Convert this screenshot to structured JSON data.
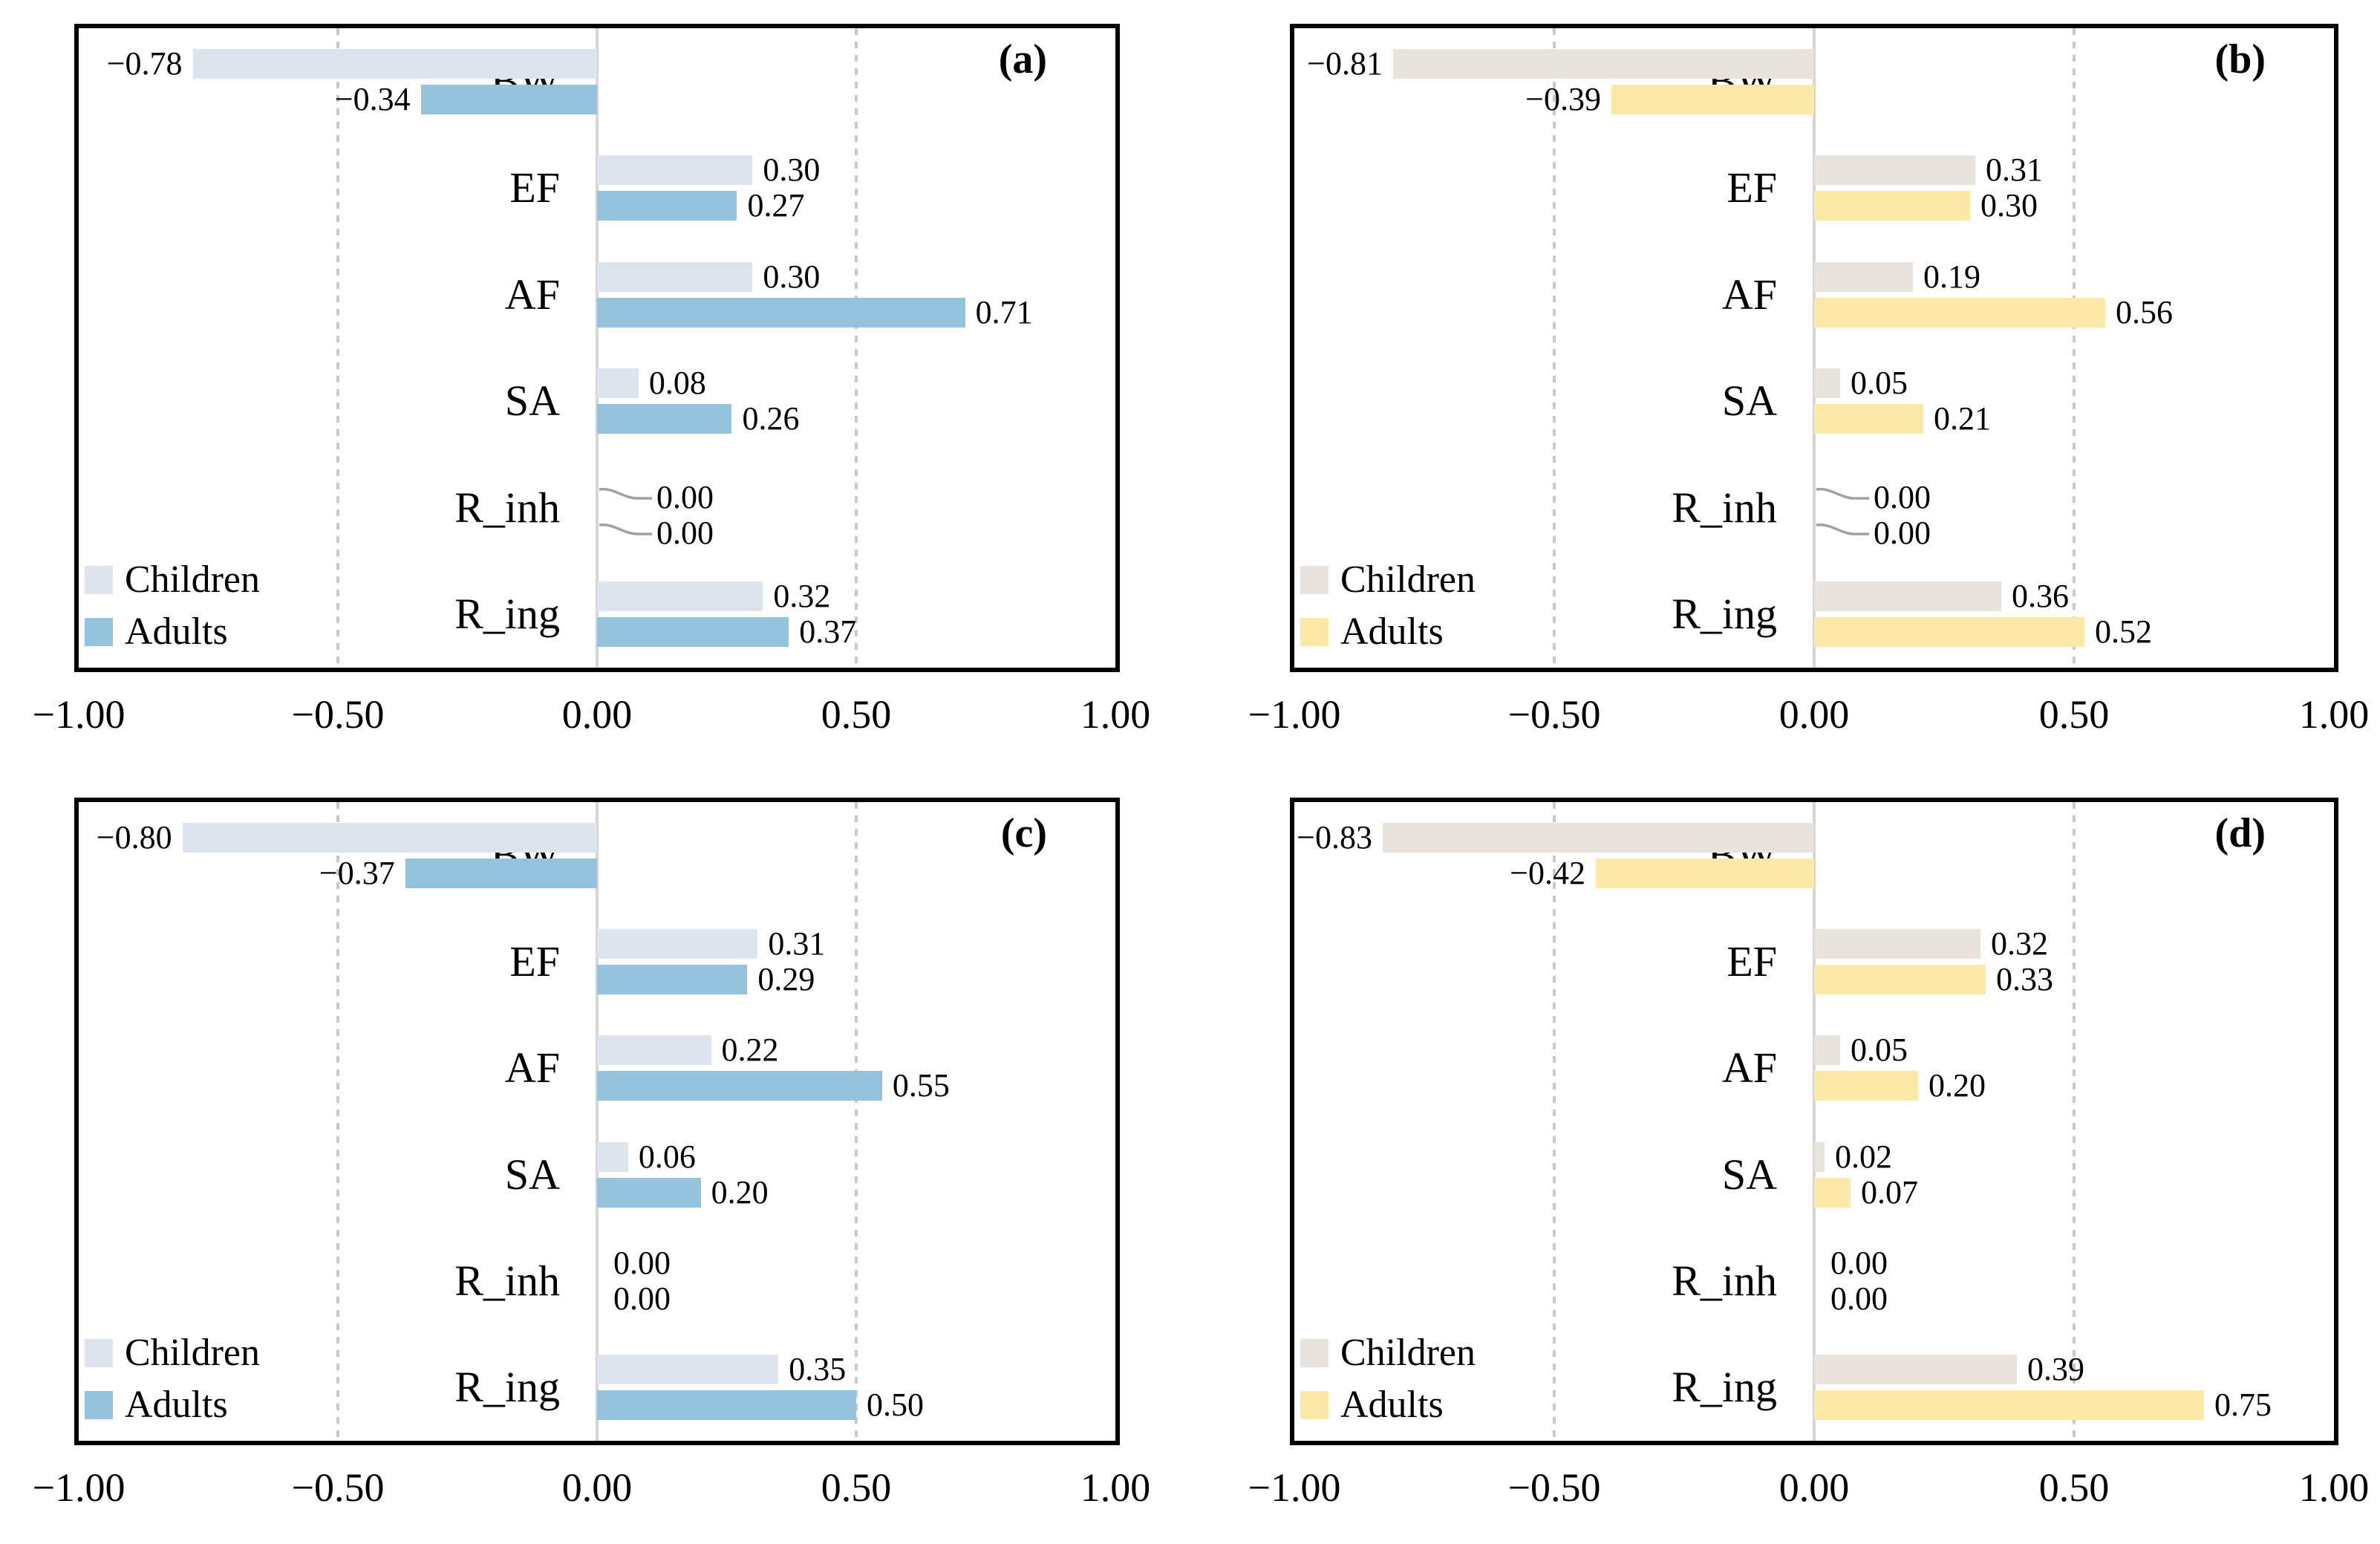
{
  "figure": {
    "background": "#ffffff",
    "description_labels": {
      "x_axis_ticks": [
        "−1.00",
        "−0.50",
        "0.00",
        "0.50",
        "1.00"
      ],
      "legend": {
        "children": "Children",
        "adults": "Adults"
      }
    }
  },
  "colors": {
    "children_blue": "#dde4ee",
    "adults_blue": "#95c2dc",
    "children_tan": "#e8e4dd",
    "adults_yellow": "#fce9a8",
    "gridline": "#c9c9c9",
    "zero_axis": "#d6d6d6",
    "panel_border": "#000000",
    "leader_line": "#a0a0a0",
    "text": "#000000"
  },
  "chart_data": [
    {
      "id": "a",
      "panel_label": "(a)",
      "type": "bar",
      "orientation": "horizontal",
      "categories": [
        "BW",
        "EF",
        "AF",
        "SA",
        "R_inh",
        "R_ing"
      ],
      "series": [
        {
          "name": "Children",
          "color": "#dde4ee",
          "values": [
            -0.78,
            0.3,
            0.3,
            0.08,
            0.0,
            0.32
          ]
        },
        {
          "name": "Adults",
          "color": "#95c2dc",
          "values": [
            -0.34,
            0.27,
            0.71,
            0.26,
            0.0,
            0.37
          ]
        }
      ],
      "xlim": [
        -1,
        1
      ],
      "xtick_labels": [
        "−1.00",
        "−0.50",
        "0.00",
        "0.50",
        "1.00"
      ],
      "gridlines_at": [
        -0.5,
        0.5
      ],
      "legend_position": "bottom-left",
      "value_labels": true,
      "zero_value_leader_lines": true
    },
    {
      "id": "b",
      "panel_label": "(b)",
      "type": "bar",
      "orientation": "horizontal",
      "categories": [
        "BW",
        "EF",
        "AF",
        "SA",
        "R_inh",
        "R_ing"
      ],
      "series": [
        {
          "name": "Children",
          "color": "#e8e4dd",
          "values": [
            -0.81,
            0.31,
            0.19,
            0.05,
            0.0,
            0.36
          ]
        },
        {
          "name": "Adults",
          "color": "#fce9a8",
          "values": [
            -0.39,
            0.3,
            0.56,
            0.21,
            0.0,
            0.52
          ]
        }
      ],
      "xlim": [
        -1,
        1
      ],
      "xtick_labels": [
        "−1.00",
        "−0.50",
        "0.00",
        "0.50",
        "1.00"
      ],
      "gridlines_at": [
        -0.5,
        0.5
      ],
      "legend_position": "bottom-left",
      "value_labels": true,
      "zero_value_leader_lines": true
    },
    {
      "id": "c",
      "panel_label": "(c)",
      "type": "bar",
      "orientation": "horizontal",
      "categories": [
        "BW",
        "EF",
        "AF",
        "SA",
        "R_inh",
        "R_ing"
      ],
      "series": [
        {
          "name": "Children",
          "color": "#dde4ee",
          "values": [
            -0.8,
            0.31,
            0.22,
            0.06,
            0.0,
            0.35
          ]
        },
        {
          "name": "Adults",
          "color": "#95c2dc",
          "values": [
            -0.37,
            0.29,
            0.55,
            0.2,
            0.0,
            0.5
          ]
        }
      ],
      "xlim": [
        -1,
        1
      ],
      "xtick_labels": [
        "−1.00",
        "−0.50",
        "0.00",
        "0.50",
        "1.00"
      ],
      "gridlines_at": [
        -0.5,
        0.5
      ],
      "legend_position": "bottom-left",
      "value_labels": true,
      "zero_value_leader_lines": false
    },
    {
      "id": "d",
      "panel_label": "(d)",
      "type": "bar",
      "orientation": "horizontal",
      "categories": [
        "BW",
        "EF",
        "AF",
        "SA",
        "R_inh",
        "R_ing"
      ],
      "series": [
        {
          "name": "Children",
          "color": "#e8e4dd",
          "values": [
            -0.83,
            0.32,
            0.05,
            0.02,
            0.0,
            0.39
          ]
        },
        {
          "name": "Adults",
          "color": "#fce9a8",
          "values": [
            -0.42,
            0.33,
            0.2,
            0.07,
            0.0,
            0.75
          ]
        }
      ],
      "xlim": [
        -1,
        1
      ],
      "xtick_labels": [
        "−1.00",
        "−0.50",
        "0.00",
        "0.50",
        "1.00"
      ],
      "gridlines_at": [
        -0.5,
        0.5
      ],
      "legend_position": "bottom-left",
      "value_labels": true,
      "zero_value_leader_lines": false
    }
  ]
}
